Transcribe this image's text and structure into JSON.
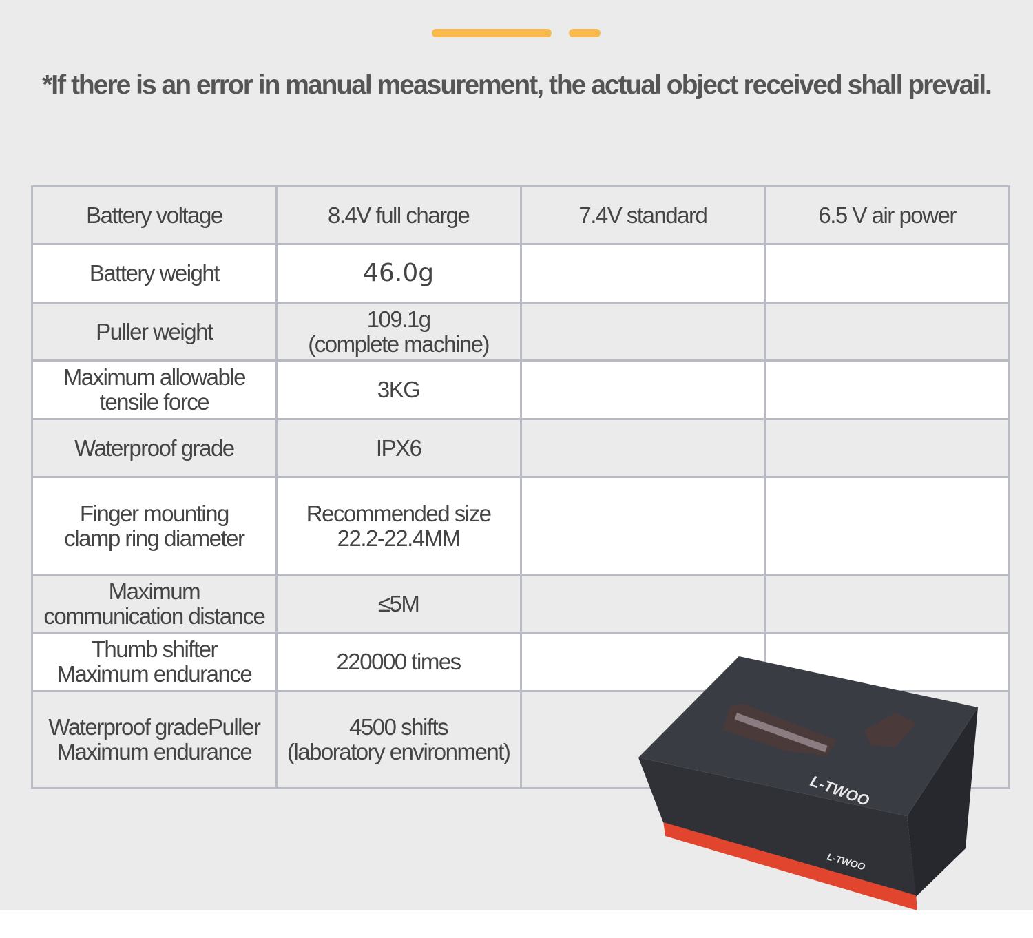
{
  "decor": {
    "accent_color": "#f8ba4c"
  },
  "notice": "*If there is an error in manual measurement, the actual object received shall prevail.",
  "spec_table": {
    "rows": [
      {
        "label": "Battery voltage",
        "values": [
          "8.4V full charge",
          "7.4V standard",
          "6.5 V air power"
        ]
      },
      {
        "label": "Battery weight",
        "values": [
          "46.0g",
          "",
          ""
        ]
      },
      {
        "label": "Puller weight",
        "values": [
          "109.1g\n(complete machine)",
          "",
          ""
        ]
      },
      {
        "label": "Maximum allowable\ntensile force",
        "values": [
          "3KG",
          "",
          ""
        ]
      },
      {
        "label": "Waterproof grade",
        "values": [
          "IPX6",
          "",
          ""
        ]
      },
      {
        "label": "Finger mounting\nclamp ring diameter",
        "values": [
          "Recommended size\n22.2-22.4MM",
          "",
          ""
        ]
      },
      {
        "label": "Maximum\ncommunication distance",
        "values": [
          "≤5M",
          "",
          ""
        ]
      },
      {
        "label": "Thumb shifter\nMaximum endurance",
        "values": [
          "220000 times",
          "",
          ""
        ]
      },
      {
        "label": "Waterproof gradePuller\nMaximum endurance",
        "values": [
          "4500 shifts\n(laboratory environment)",
          "",
          ""
        ]
      }
    ]
  },
  "product_image": {
    "brand": "L-TWOO",
    "box_color": "#34363c",
    "stripe_color": "#e2452e"
  }
}
